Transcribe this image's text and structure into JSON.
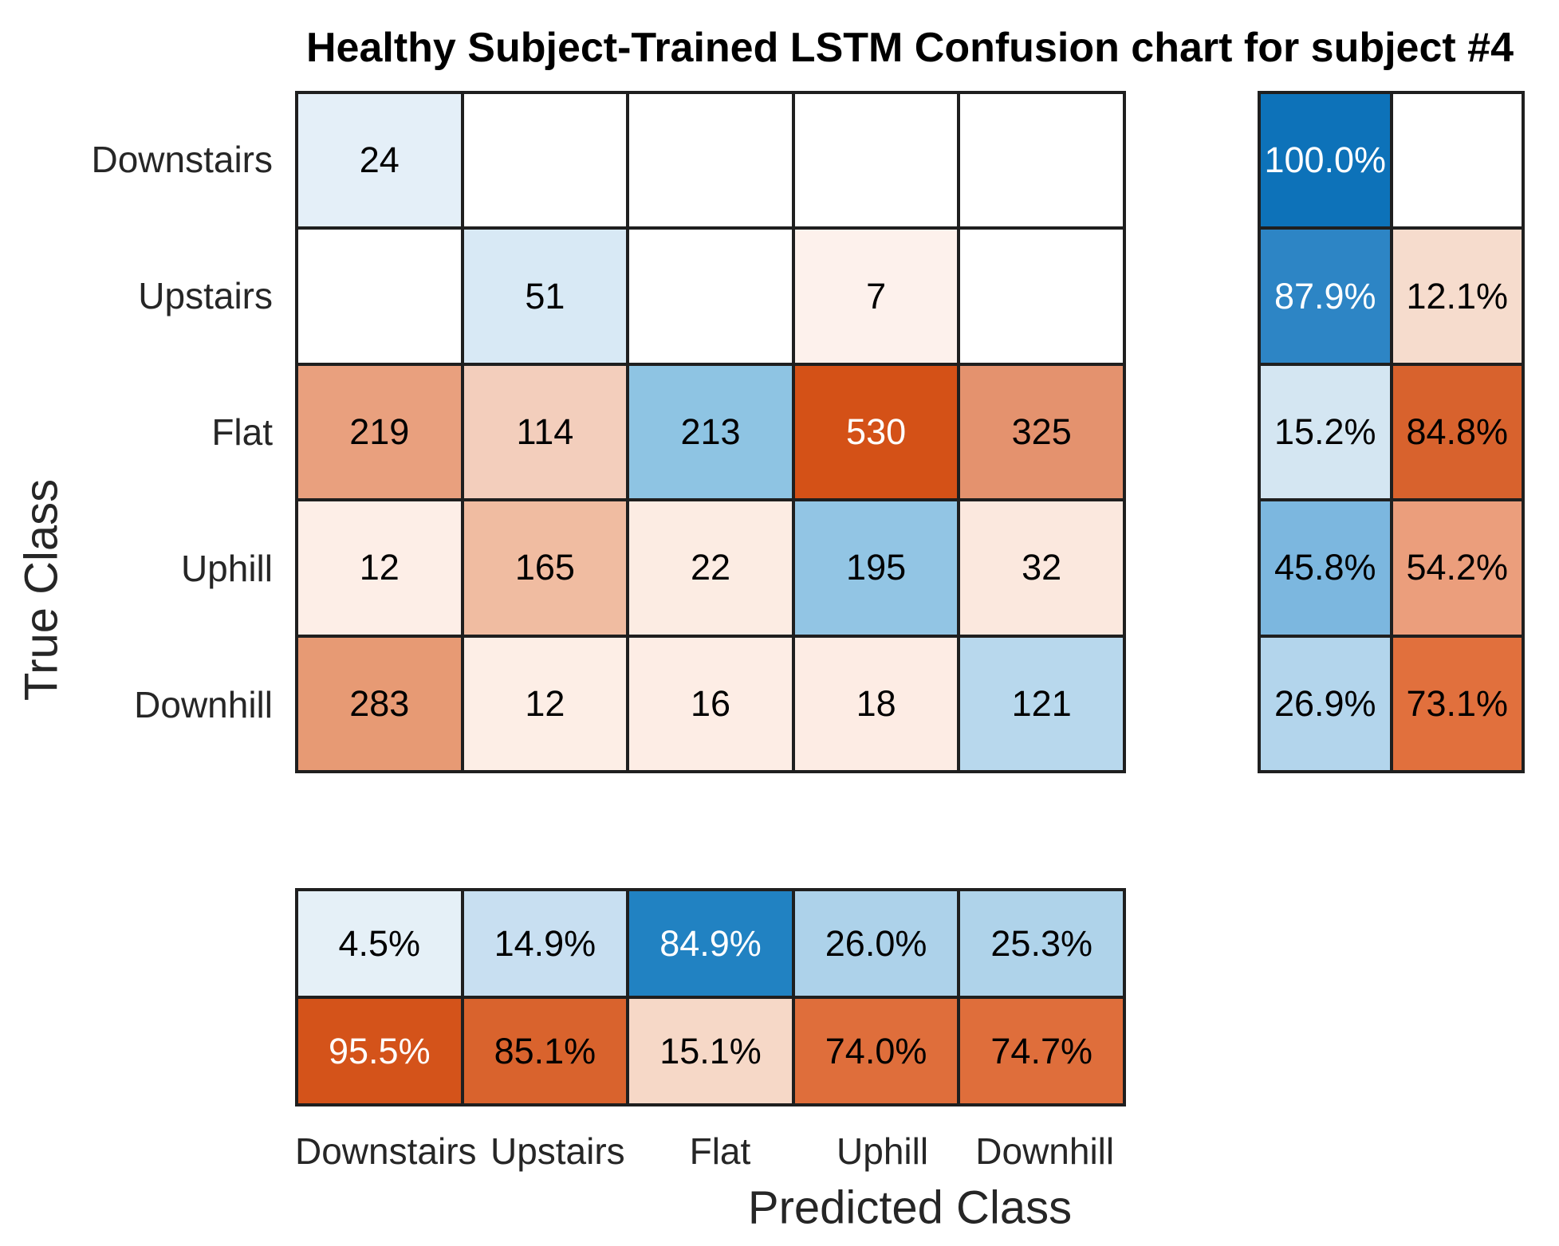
{
  "title": "Healthy Subject-Trained LSTM Confusion chart for subject #4",
  "chart_data": {
    "type": "heatmap",
    "title": "Healthy Subject-Trained LSTM Confusion chart for subject #4",
    "xlabel": "Predicted Class",
    "ylabel": "True Class",
    "x_categories": [
      "Downstairs",
      "Upstairs",
      "Flat",
      "Uphill",
      "Downhill"
    ],
    "y_categories": [
      "Downstairs",
      "Upstairs",
      "Flat",
      "Uphill",
      "Downhill"
    ],
    "matrix": [
      [
        24,
        null,
        null,
        null,
        null
      ],
      [
        null,
        51,
        null,
        7,
        null
      ],
      [
        219,
        114,
        213,
        530,
        325
      ],
      [
        12,
        165,
        22,
        195,
        32
      ],
      [
        283,
        12,
        16,
        18,
        121
      ]
    ],
    "row_summary_pct": [
      [
        100.0,
        null
      ],
      [
        87.9,
        12.1
      ],
      [
        15.2,
        84.8
      ],
      [
        45.8,
        54.2
      ],
      [
        26.9,
        73.1
      ]
    ],
    "col_summary_pct": [
      [
        4.5,
        14.9,
        84.9,
        26.0,
        25.3
      ],
      [
        95.5,
        85.1,
        15.1,
        74.0,
        74.7
      ]
    ],
    "legend_position": "none",
    "grid": true,
    "colors": {
      "diagonal_accent": "#0d72b9",
      "off_diagonal_accent": "#d45117",
      "grid_line": "#1f1f1f",
      "background": "#ffffff"
    }
  },
  "render": {
    "matrix_cells": [
      [
        {
          "t": "24",
          "bg": "#e4eff8"
        },
        {
          "t": "",
          "bg": "#ffffff"
        },
        {
          "t": "",
          "bg": "#ffffff"
        },
        {
          "t": "",
          "bg": "#ffffff"
        },
        {
          "t": "",
          "bg": "#ffffff"
        }
      ],
      [
        {
          "t": "",
          "bg": "#ffffff"
        },
        {
          "t": "51",
          "bg": "#d8e9f5"
        },
        {
          "t": "",
          "bg": "#ffffff"
        },
        {
          "t": "7",
          "bg": "#fdf1ec"
        },
        {
          "t": "",
          "bg": "#ffffff"
        }
      ],
      [
        {
          "t": "219",
          "bg": "#e9a07e"
        },
        {
          "t": "114",
          "bg": "#f3cebc"
        },
        {
          "t": "213",
          "bg": "#8ec4e3"
        },
        {
          "t": "530",
          "bg": "#d45117",
          "fg": "#ffffff"
        },
        {
          "t": "325",
          "bg": "#e4926e"
        }
      ],
      [
        {
          "t": "12",
          "bg": "#fdeee7"
        },
        {
          "t": "165",
          "bg": "#f0bca1"
        },
        {
          "t": "22",
          "bg": "#fcece3"
        },
        {
          "t": "195",
          "bg": "#92c5e4"
        },
        {
          "t": "32",
          "bg": "#fbe8de"
        }
      ],
      [
        {
          "t": "283",
          "bg": "#e79a74"
        },
        {
          "t": "12",
          "bg": "#fdeee6"
        },
        {
          "t": "16",
          "bg": "#fdede5"
        },
        {
          "t": "18",
          "bg": "#fdece4"
        },
        {
          "t": "121",
          "bg": "#b8d8ed"
        }
      ]
    ],
    "row_summary_cells": [
      [
        {
          "t": "100.0%",
          "bg": "#0d72b9",
          "fg": "#ffffff"
        },
        {
          "t": "",
          "bg": "#ffffff"
        }
      ],
      [
        {
          "t": "87.9%",
          "bg": "#2d85c5",
          "fg": "#ffffff"
        },
        {
          "t": "12.1%",
          "bg": "#f6dccd"
        }
      ],
      [
        {
          "t": "15.2%",
          "bg": "#d4e6f2"
        },
        {
          "t": "84.8%",
          "bg": "#d8622d"
        }
      ],
      [
        {
          "t": "45.8%",
          "bg": "#7cb7df"
        },
        {
          "t": "54.2%",
          "bg": "#eb9e7c"
        }
      ],
      [
        {
          "t": "26.9%",
          "bg": "#b3d5ec"
        },
        {
          "t": "73.1%",
          "bg": "#e1703d"
        }
      ]
    ],
    "col_summary_cells": [
      [
        {
          "t": "4.5%",
          "bg": "#e5f0f7"
        },
        {
          "t": "14.9%",
          "bg": "#c8dff1"
        },
        {
          "t": "84.9%",
          "bg": "#2182c2",
          "fg": "#ffffff"
        },
        {
          "t": "26.0%",
          "bg": "#add2ea"
        },
        {
          "t": "25.3%",
          "bg": "#afd3ea"
        }
      ],
      [
        {
          "t": "95.5%",
          "bg": "#d4531a",
          "fg": "#ffffff"
        },
        {
          "t": "85.1%",
          "bg": "#d9632d"
        },
        {
          "t": "15.1%",
          "bg": "#f6d8c7"
        },
        {
          "t": "74.0%",
          "bg": "#df6e3b"
        },
        {
          "t": "74.7%",
          "bg": "#df6e3b"
        }
      ]
    ]
  }
}
